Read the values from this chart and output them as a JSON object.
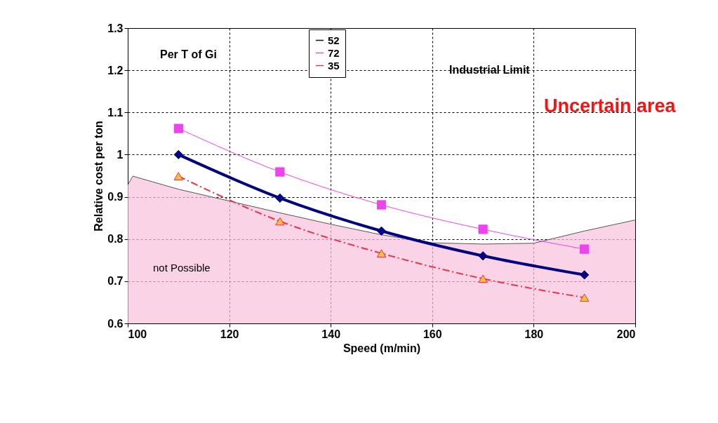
{
  "chart_data": {
    "type": "line",
    "xlabel": "Speed (m/min)",
    "ylabel": "Relative cost per ton",
    "xlim": [
      100,
      200
    ],
    "xticks": [
      100,
      120,
      140,
      160,
      180,
      200
    ],
    "ylim": [
      0.6,
      1.3
    ],
    "yticks": [
      0.6,
      0.7,
      0.8,
      0.9,
      1,
      1.1,
      1.2,
      1.3
    ],
    "grid": true,
    "legend": "top",
    "series": [
      {
        "name": "52",
        "color": "#000080",
        "x": [
          110,
          130,
          150,
          170,
          190
        ],
        "values": [
          1.0,
          0.897,
          0.819,
          0.76,
          0.715
        ],
        "marker": "diamond",
        "line_style": "solid"
      },
      {
        "name": "72",
        "color": "#ee44ee",
        "x": [
          110,
          130,
          150,
          170,
          190
        ],
        "values": [
          1.062,
          0.959,
          0.881,
          0.823,
          0.776
        ],
        "marker": "square",
        "line_style": "solid"
      },
      {
        "name": "35",
        "color": "#ee3344",
        "x": [
          110,
          130,
          150,
          170,
          190
        ],
        "values": [
          0.949,
          0.842,
          0.766,
          0.706,
          0.661
        ],
        "marker": "triangle",
        "line_style": "dashed"
      },
      {
        "type": "area",
        "color": "#f8c0dc",
        "x": [
          100,
          101,
          110,
          120,
          130,
          140,
          150,
          160,
          170,
          180,
          190,
          200
        ],
        "values": [
          0.928,
          0.949,
          0.918,
          0.89,
          0.862,
          0.835,
          0.81,
          0.791,
          0.788,
          0.79,
          0.819,
          0.845
        ]
      }
    ],
    "annotations": [
      "Per T of Gi",
      "Industrial Limit",
      "not Possible",
      "Uncertain area"
    ]
  }
}
